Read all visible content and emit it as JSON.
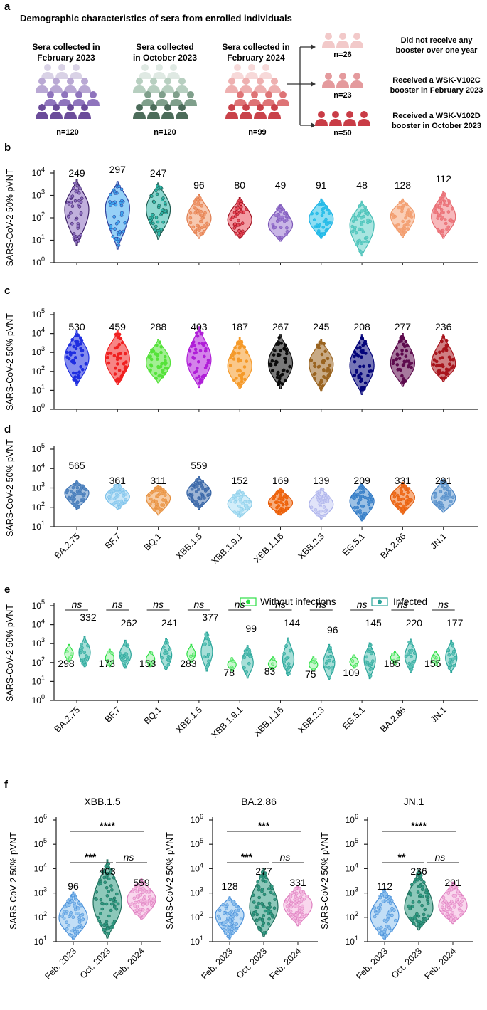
{
  "panel_letters": {
    "a": "a",
    "b": "b",
    "c": "c",
    "d": "d",
    "e": "e",
    "f": "f"
  },
  "panel_a": {
    "title": "Demographic  characteristics of sera from enrolled individuals",
    "groups": [
      {
        "line1": "Sera collected in",
        "line2": "February 2023",
        "n": "n=120",
        "colors": [
          "#d9d2e6",
          "#b9a8d4",
          "#8f74bd",
          "#6b4c9a"
        ]
      },
      {
        "line1": "Sera collected",
        "line2": "in October 2023",
        "n": "n=120",
        "colors": [
          "#dfe9e3",
          "#b7cfc0",
          "#7f9f8b",
          "#4c6c5a"
        ]
      },
      {
        "line1": "Sera collected in",
        "line2": "February 2024",
        "n": "n=99",
        "colors": [
          "#f7d9d9",
          "#eeb0b0",
          "#de7476",
          "#c9424a"
        ]
      }
    ],
    "branches": [
      {
        "n": "n=26",
        "line1": "Did not receive any",
        "line2": "booster over one year",
        "color": "#f2c9c9"
      },
      {
        "n": "n=23",
        "line1": "Received a WSK-V102C",
        "line2": "booster in February 2023",
        "color": "#e49a9d"
      },
      {
        "n": "n=50",
        "line1": "Received a WSK-V102D",
        "line2": "booster in October 2023",
        "color": "#c93c46"
      }
    ]
  },
  "ylabel": "SARS-CoV-2 50% pVNT",
  "variants": [
    "BA.2.75",
    "BF.7",
    "BQ.1",
    "XBB.1.5",
    "XBB.1.9.1",
    "XBB.1.16",
    "XBB.2.3",
    "EG.5.1",
    "BA.2.86",
    "JN.1"
  ],
  "chart_data": [
    {
      "id": "b",
      "type": "violin",
      "scale": "log10",
      "ylim": [
        1,
        10000
      ],
      "ylabel": "SARS-CoV-2 50% pVNT",
      "categories": [
        "BA.2.75",
        "BF.7",
        "BQ.1",
        "XBB.1.5",
        "XBB.1.9.1",
        "XBB.1.16",
        "XBB.2.3",
        "EG.5.1",
        "BA.2.86",
        "JN.1"
      ],
      "gmt": [
        "249",
        "297",
        "247",
        "96",
        "80",
        "49",
        "91",
        "48",
        "128",
        "112"
      ],
      "gmt_values": [
        249,
        297,
        247,
        96,
        80,
        49,
        91,
        48,
        128,
        112
      ],
      "min": [
        6,
        4,
        11,
        12,
        12,
        9,
        12,
        2,
        13,
        12
      ],
      "max": [
        5200,
        4200,
        3600,
        1100,
        800,
        380,
        700,
        560,
        700,
        1500
      ],
      "colors": [
        "#8e6fc1",
        "#3fa9f0",
        "#2fb7a8",
        "#f19a6f",
        "#ea4a5a",
        "#9d7ad2",
        "#2fc2ea",
        "#63cfc6",
        "#f5a57a",
        "#f07d83"
      ],
      "edges": [
        "#3c1f66",
        "#2c3f9e",
        "#1e5a50",
        "#e07b4c",
        "#a0101f",
        "#7c57b8",
        "#1fb4e6",
        "#46bdb5",
        "#f09a6a",
        "#e56a70"
      ]
    },
    {
      "id": "c",
      "type": "violin",
      "scale": "log10",
      "ylim": [
        1,
        100000
      ],
      "ylabel": "SARS-CoV-2 50% pVNT",
      "categories": [
        "BA.2.75",
        "BF.7",
        "BQ.1",
        "XBB.1.5",
        "XBB.1.9.1",
        "XBB.1.16",
        "XBB.2.3",
        "EG.5.1",
        "BA.2.86",
        "JN.1"
      ],
      "gmt": [
        "530",
        "459",
        "288",
        "403",
        "187",
        "267",
        "245",
        "208",
        "277",
        "236"
      ],
      "gmt_values": [
        530,
        459,
        288,
        403,
        187,
        267,
        245,
        208,
        277,
        236
      ],
      "min": [
        18,
        20,
        25,
        14,
        12,
        12,
        9,
        6,
        16,
        30
      ],
      "max": [
        14000,
        14000,
        5000,
        23000,
        6000,
        9000,
        5000,
        9000,
        10000,
        9000
      ],
      "colors": [
        "#1f2ee0",
        "#f02020",
        "#55e23a",
        "#b01ed8",
        "#f59a2a",
        "#0b0b0b",
        "#9a6420",
        "#05057a",
        "#5e0b4e",
        "#a8141c"
      ],
      "edges": [
        "#1f2ee0",
        "#f02020",
        "#55e23a",
        "#b01ed8",
        "#f59a2a",
        "#0b0b0b",
        "#9a6420",
        "#05057a",
        "#5e0b4e",
        "#a8141c"
      ]
    },
    {
      "id": "d",
      "type": "violin",
      "scale": "log10",
      "ylim": [
        10,
        100000
      ],
      "ylabel": "SARS-CoV-2 50% pVNT",
      "categories": [
        "BA.2.75",
        "BF.7",
        "BQ.1",
        "XBB.1.5",
        "XBB.1.9.1",
        "XBB.1.16",
        "XBB.2.3",
        "EG.5.1",
        "BA.2.86",
        "JN.1"
      ],
      "gmt": [
        "565",
        "361",
        "311",
        "559",
        "152",
        "169",
        "139",
        "209",
        "331",
        "291"
      ],
      "gmt_values": [
        565,
        361,
        311,
        559,
        152,
        169,
        139,
        209,
        331,
        291
      ],
      "min": [
        80,
        80,
        40,
        80,
        30,
        40,
        25,
        20,
        45,
        55
      ],
      "max": [
        2300,
        1700,
        1300,
        3800,
        800,
        900,
        1000,
        1700,
        2000,
        2800
      ],
      "colors": [
        "#5a8cc4",
        "#9dd3f2",
        "#f0a35a",
        "#4f78b3",
        "#aee0f5",
        "#f36a12",
        "#c9cdf4",
        "#4a8ed0",
        "#f36f1e",
        "#6fa2d5"
      ],
      "edges": [
        "#3f75b5",
        "#7cc1ea",
        "#e48f3e",
        "#2f5fa2",
        "#8ccde8",
        "#e55a08",
        "#aab0ea",
        "#2f76c2",
        "#e05d10",
        "#4f88c6"
      ]
    },
    {
      "id": "e",
      "type": "paired-violin",
      "scale": "log10",
      "ylim": [
        1,
        100000
      ],
      "ylabel": "SARS-CoV-2 50% pVNT",
      "categories": [
        "BA.2.75",
        "BF.7",
        "BQ.1",
        "XBB.1.5",
        "XBB.1.9.1",
        "XBB.1.16",
        "XBB.2.3",
        "EG.5.1",
        "BA.2.86",
        "JN.1"
      ],
      "legend": [
        "Without infections",
        "Infected"
      ],
      "legend_colors": [
        "#2ee046",
        "#2aa59a"
      ],
      "sig": [
        "ns",
        "ns",
        "ns",
        "ns",
        "ns",
        "ns",
        "ns",
        "ns",
        "ns",
        "ns"
      ],
      "without_gmt": [
        "298",
        "173",
        "153",
        "283",
        "78",
        "83",
        "75",
        "109",
        "185",
        "155"
      ],
      "infected_gmt": [
        "332",
        "262",
        "241",
        "377",
        "99",
        "144",
        "96",
        "145",
        "220",
        "177"
      ],
      "without_values": [
        298,
        173,
        153,
        283,
        78,
        83,
        75,
        109,
        185,
        155
      ],
      "infected_values": [
        332,
        262,
        241,
        377,
        99,
        144,
        96,
        145,
        220,
        177
      ],
      "without_range": [
        [
          110,
          900
        ],
        [
          60,
          500
        ],
        [
          60,
          400
        ],
        [
          100,
          900
        ],
        [
          35,
          180
        ],
        [
          40,
          200
        ],
        [
          35,
          200
        ],
        [
          50,
          250
        ],
        [
          80,
          400
        ],
        [
          70,
          400
        ]
      ],
      "infected_range": [
        [
          60,
          2400
        ],
        [
          50,
          1500
        ],
        [
          40,
          1800
        ],
        [
          35,
          4000
        ],
        [
          15,
          800
        ],
        [
          20,
          2000
        ],
        [
          12,
          900
        ],
        [
          14,
          1100
        ],
        [
          30,
          1700
        ],
        [
          30,
          1500
        ]
      ]
    },
    {
      "id": "f1",
      "type": "violin",
      "scale": "log10",
      "ylim": [
        10,
        1000000
      ],
      "title": "XBB.1.5",
      "ylabel": "SARS-CoV-2 50% pVNT",
      "categories": [
        "Feb. 2023",
        "Oct. 2023",
        "Feb. 2024"
      ],
      "gmt": [
        "96",
        "403",
        "559"
      ],
      "gmt_values": [
        96,
        403,
        559
      ],
      "min": [
        12,
        14,
        80
      ],
      "max": [
        1100,
        23000,
        3800
      ],
      "sig_top": "****",
      "sig_left": "***",
      "sig_right": "ns"
    },
    {
      "id": "f2",
      "type": "violin",
      "scale": "log10",
      "ylim": [
        10,
        1000000
      ],
      "title": "BA.2.86",
      "ylabel": "SARS-CoV-2 50% pVNT",
      "categories": [
        "Feb. 2023",
        "Oct. 2023",
        "Feb. 2024"
      ],
      "gmt": [
        "128",
        "277",
        "331"
      ],
      "gmt_values": [
        128,
        277,
        331
      ],
      "min": [
        13,
        16,
        45
      ],
      "max": [
        700,
        10000,
        2000
      ],
      "sig_top": "***",
      "sig_left": "***",
      "sig_right": "ns"
    },
    {
      "id": "f3",
      "type": "violin",
      "scale": "log10",
      "ylim": [
        10,
        1000000
      ],
      "title": "JN.1",
      "ylabel": "SARS-CoV-2 50% pVNT",
      "categories": [
        "Feb. 2023",
        "Oct. 2023",
        "Feb. 2024"
      ],
      "gmt": [
        "112",
        "236",
        "291"
      ],
      "gmt_values": [
        112,
        236,
        291
      ],
      "min": [
        12,
        30,
        55
      ],
      "max": [
        1500,
        9000,
        2800
      ],
      "sig_top": "****",
      "sig_left": "**",
      "sig_right": "ns"
    }
  ],
  "panel_f_colors": {
    "fill": [
      "#8fc2ef",
      "#2f9a82",
      "#f4b7df"
    ],
    "edge": [
      "#4a90d9",
      "#1f6e5c",
      "#de7fc0"
    ]
  }
}
